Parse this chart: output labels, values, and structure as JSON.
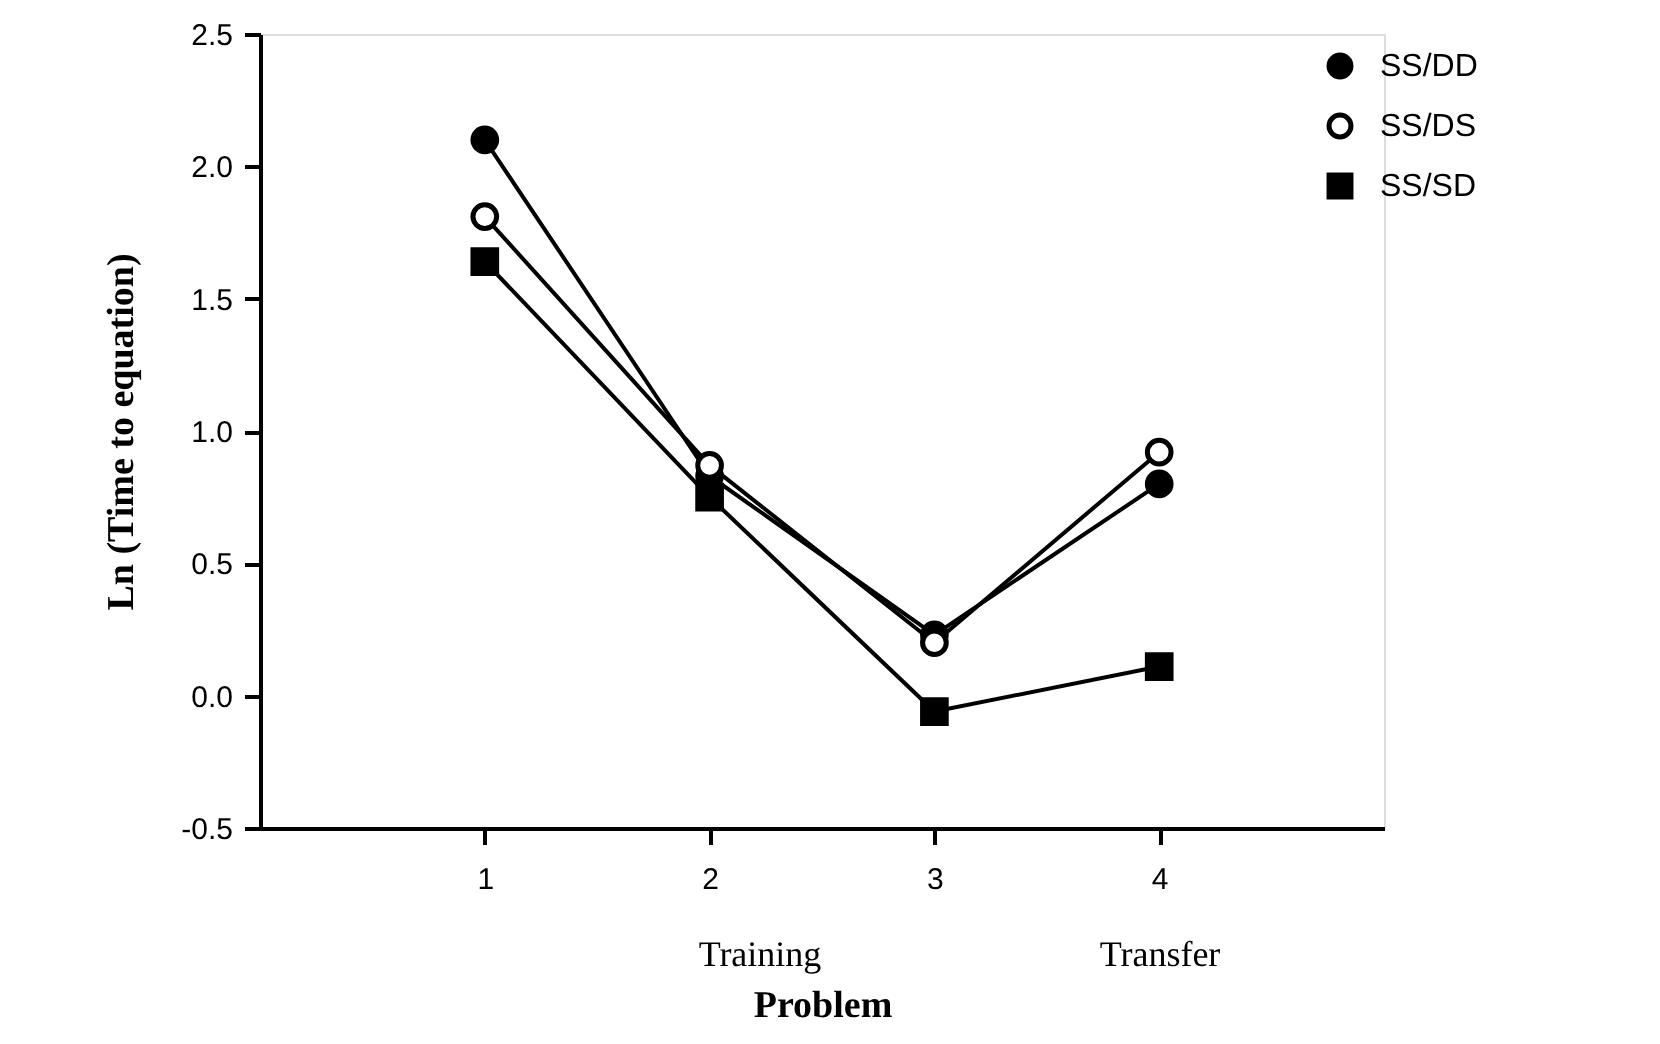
{
  "chart_data": {
    "type": "line",
    "xlabel": "Problem",
    "ylabel": "Ln  (Time  to  equation)",
    "x": [
      1,
      2,
      3,
      4
    ],
    "xlim": [
      0,
      5
    ],
    "xticks": [
      1,
      2,
      3,
      4
    ],
    "ylim": [
      -0.5,
      2.5
    ],
    "yticks": [
      {
        "value": -0.5,
        "label": "-0.5"
      },
      {
        "value": 0,
        "label": "0.0"
      },
      {
        "value": 0.5,
        "label": "0.5"
      },
      {
        "value": 1,
        "label": "1.0"
      },
      {
        "value": 1.5,
        "label": "1.5"
      },
      {
        "value": 2,
        "label": "2.0"
      },
      {
        "value": 2.5,
        "label": "2.5"
      }
    ],
    "series": [
      {
        "name": "SS/DD",
        "color": "#000000",
        "marker": "circle",
        "values": [
          2.1,
          0.83,
          0.23,
          0.8
        ]
      },
      {
        "name": "SS/DS",
        "color": "#000000",
        "marker": "circle",
        "values": [
          1.81,
          0.87,
          0.2,
          0.92
        ]
      },
      {
        "name": "SS/SD",
        "color": "#000000",
        "marker": "square",
        "values": [
          1.64,
          0.75,
          -0.06,
          0.11
        ]
      }
    ],
    "annotations": [
      "Training",
      "Transfer"
    ],
    "legend": "top right",
    "grid": false,
    "line_style": "solid"
  }
}
